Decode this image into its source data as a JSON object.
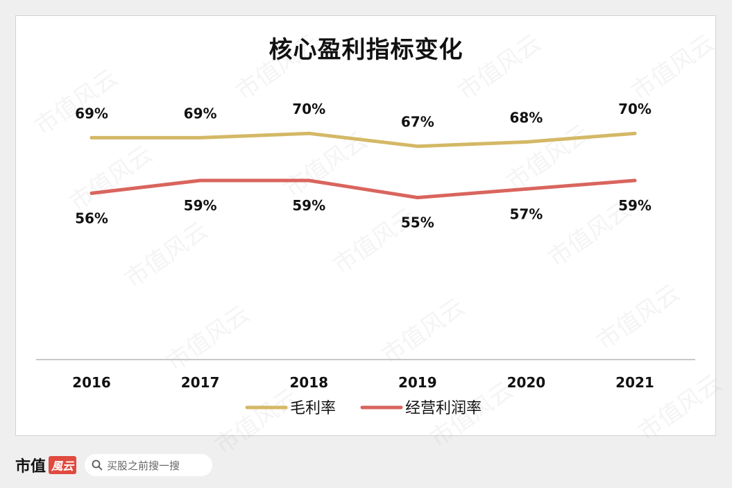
{
  "chart_data": {
    "type": "line",
    "title": "核心盈利指标变化",
    "categories": [
      "2016",
      "2017",
      "2018",
      "2019",
      "2020",
      "2021"
    ],
    "series": [
      {
        "name": "毛利率",
        "values": [
          69,
          69,
          70,
          67,
          68,
          70
        ],
        "labels": [
          "69%",
          "69%",
          "70%",
          "67%",
          "68%",
          "70%"
        ],
        "color": "#d4b866"
      },
      {
        "name": "经营利润率",
        "values": [
          56,
          59,
          59,
          55,
          57,
          59
        ],
        "labels": [
          "56%",
          "59%",
          "59%",
          "55%",
          "57%",
          "59%"
        ],
        "color": "#d9655e"
      }
    ],
    "legend": "bottom",
    "grid": false
  },
  "footer": {
    "brand": "市值",
    "brand_seal": "風云",
    "search_placeholder": "买股之前搜一搜"
  },
  "watermark": "市值风云",
  "icons": {
    "search": "search-icon"
  }
}
